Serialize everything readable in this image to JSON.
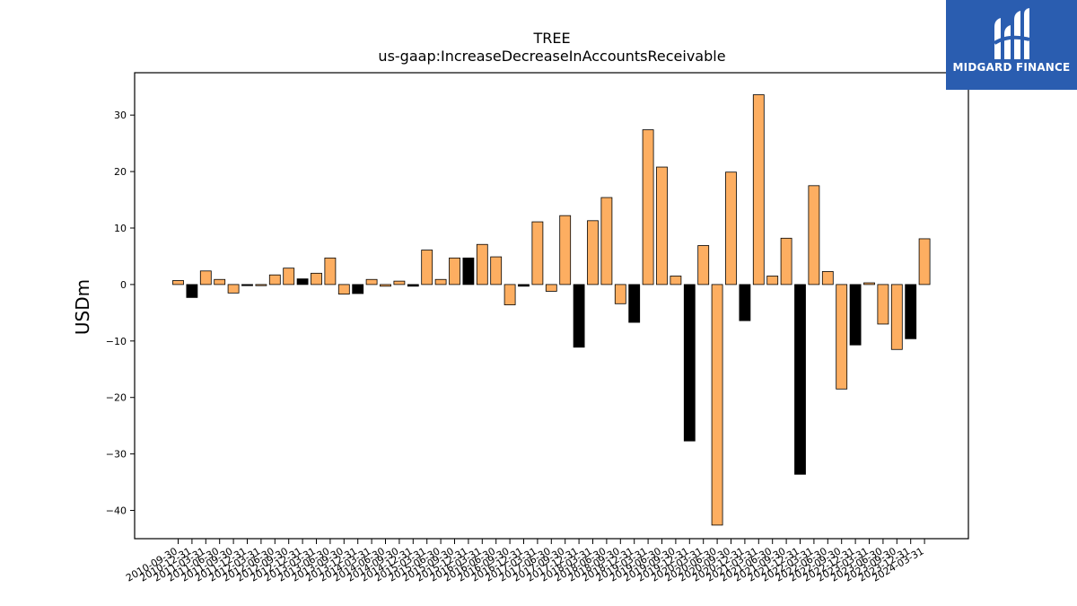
{
  "chart_data": {
    "type": "bar",
    "title": "TREE",
    "subtitle": "us-gaap:IncreaseDecreaseInAccountsReceivable",
    "xlabel": "",
    "ylabel": "USDm",
    "ylim": [
      -45,
      37.5
    ],
    "yticks": [
      30,
      20,
      10,
      0,
      -10,
      -20,
      -30,
      -40
    ],
    "grid": false,
    "colors": {
      "quarter": "#fdae61",
      "year_end": "#000000",
      "edge": "#000000"
    },
    "categories": [
      "2010-09-30",
      "2010-12-31",
      "2011-03-31",
      "2011-06-30",
      "2011-09-30",
      "2011-12-31",
      "2012-03-31",
      "2012-06-30",
      "2012-09-30",
      "2012-12-31",
      "2013-03-31",
      "2013-06-30",
      "2013-09-30",
      "2013-12-31",
      "2014-03-31",
      "2014-06-30",
      "2014-09-30",
      "2014-12-31",
      "2015-03-31",
      "2015-06-30",
      "2015-09-30",
      "2015-12-31",
      "2016-03-31",
      "2016-06-30",
      "2016-09-30",
      "2016-12-31",
      "2017-03-31",
      "2017-06-30",
      "2017-09-30",
      "2017-12-31",
      "2018-03-31",
      "2018-06-30",
      "2018-09-30",
      "2018-12-31",
      "2019-03-31",
      "2019-06-30",
      "2019-09-30",
      "2019-12-31",
      "2020-03-31",
      "2020-06-30",
      "2020-09-30",
      "2020-12-31",
      "2021-03-31",
      "2021-06-30",
      "2021-09-30",
      "2021-12-31",
      "2022-03-31",
      "2022-06-30",
      "2022-09-30",
      "2022-12-31",
      "2023-03-31",
      "2023-06-30",
      "2023-09-30",
      "2023-12-31",
      "2024-03-31"
    ],
    "values": [
      0.7,
      -2.3,
      2.4,
      0.9,
      -1.5,
      -0.2,
      -0.2,
      1.7,
      2.9,
      1.0,
      2.0,
      4.7,
      -1.7,
      -1.6,
      0.9,
      -0.3,
      0.6,
      -0.3,
      6.1,
      0.9,
      4.7,
      4.7,
      7.1,
      4.9,
      -3.6,
      -0.3,
      11.1,
      -1.2,
      12.2,
      -11.1,
      11.3,
      15.4,
      -3.4,
      -6.7,
      27.4,
      20.8,
      1.5,
      -27.7,
      6.9,
      -42.6,
      19.9,
      -6.4,
      33.6,
      1.5,
      8.2,
      -33.6,
      17.5,
      2.3,
      -18.5,
      -10.7,
      0.3,
      -7.0,
      -11.5,
      -9.6,
      8.1
    ],
    "is_year_end": [
      false,
      true,
      false,
      false,
      false,
      true,
      false,
      false,
      false,
      true,
      false,
      false,
      false,
      true,
      false,
      false,
      false,
      true,
      false,
      false,
      false,
      true,
      false,
      false,
      false,
      true,
      false,
      false,
      false,
      true,
      false,
      false,
      false,
      true,
      false,
      false,
      false,
      true,
      false,
      false,
      false,
      true,
      false,
      false,
      false,
      true,
      false,
      false,
      false,
      true,
      false,
      false,
      false,
      true,
      false
    ],
    "tick_labels": [
      "2010-09-30",
      "2010-12-31",
      "2011-03-31",
      "2011-06-30",
      "2011-09-30",
      "2011-12-31",
      "2012-03-31",
      "2012-06-30",
      "2012-09-30",
      "2012-12-31",
      "2013-03-31",
      "2013-06-30",
      "2013-09-30",
      "2013-12-31",
      "2014-03-31",
      "2014-06-30",
      "2014-09-30",
      "2014-12-31",
      "2015-03-31",
      "2015-06-30",
      "2015-09-30",
      "2015-12-31",
      "2016-03-31",
      "2016-06-30",
      "2016-09-30",
      "2016-12-31",
      "2017-03-31",
      "2017-06-30",
      "2017-09-30",
      "2017-12-31",
      "2018-03-31",
      "2018-06-30",
      "2018-09-30",
      "2018-12-31",
      "2019-03-31",
      "2019-06-30",
      "2019-09-30",
      "2019-12-31",
      "2020-03-31",
      "2020-06-30",
      "2020-09-30",
      "2020-12-31",
      "2021-03-31",
      "2021-06-30",
      "2021-09-30",
      "2021-12-31",
      "2022-03-31",
      "2022-06-30",
      "2022-09-30",
      "2022-12-31",
      "2023-03-31",
      "2023-06-30",
      "2023-09-30",
      "2023-12-31",
      "2024-03-31"
    ]
  },
  "logo": {
    "text": "MIDGARD FINANCE",
    "icon": "midgard-logo-icon",
    "background": "#2a5db0"
  }
}
